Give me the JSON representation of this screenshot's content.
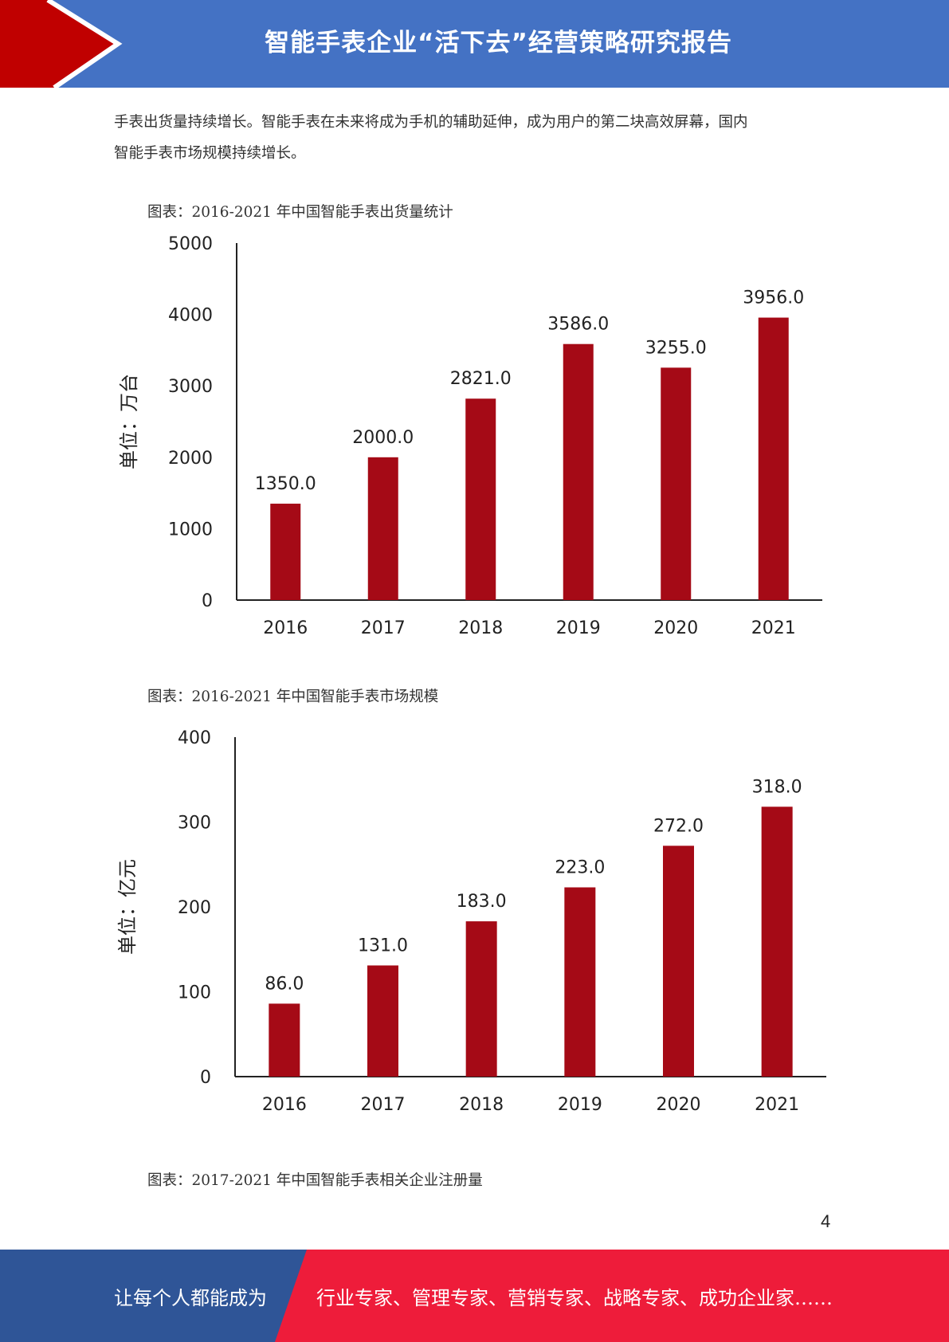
{
  "header": {
    "title": "智能手表企业“活下去”经营策略研究报告"
  },
  "intro": {
    "line1": "手表出货量持续增长。智能手表在未来将成为手机的辅助延伸，成为用户的第二块高效屏幕，国内",
    "line2": "智能手表市场规模持续增长。"
  },
  "captions": {
    "chart1": "图表：2016-2021 年中国智能手表出货量统计",
    "chart2": "图表：2016-2021 年中国智能手表市场规模",
    "chart3": "图表：2017-2021 年中国智能手表相关企业注册量"
  },
  "chart_data": [
    {
      "type": "bar",
      "categories": [
        "2016",
        "2017",
        "2018",
        "2019",
        "2020",
        "2021"
      ],
      "values": [
        1350.0,
        2000.0,
        2821.0,
        3586.0,
        3255.0,
        3956.0
      ],
      "value_labels": [
        "1350.0",
        "2000.0",
        "2821.0",
        "3586.0",
        "3255.0",
        "3956.0"
      ],
      "ylabel": "单位：万台",
      "ylim": [
        0,
        5000
      ],
      "yticks": [
        "0",
        "1000",
        "2000",
        "3000",
        "4000",
        "5000"
      ],
      "grid": false,
      "bar_color": "#a50a16"
    },
    {
      "type": "bar",
      "categories": [
        "2016",
        "2017",
        "2018",
        "2019",
        "2020",
        "2021"
      ],
      "values": [
        86.0,
        131.0,
        183.0,
        223.0,
        272.0,
        318.0
      ],
      "value_labels": [
        "86.0",
        "131.0",
        "183.0",
        "223.0",
        "272.0",
        "318.0"
      ],
      "ylabel": "单位：亿元",
      "ylim": [
        0,
        400
      ],
      "yticks": [
        "0",
        "100",
        "200",
        "300",
        "400"
      ],
      "grid": false,
      "bar_color": "#a50a16"
    }
  ],
  "page_number": "4",
  "footer": {
    "left_text": "让每个人都能成为",
    "right_text": "行业专家、管理专家、营销专家、战略专家、成功企业家……"
  },
  "colors": {
    "header_blue": "#4472c4",
    "header_red": "#c00000",
    "footer_blue": "#2f5597",
    "footer_red": "#ee1c3a",
    "bar": "#a50a16"
  }
}
